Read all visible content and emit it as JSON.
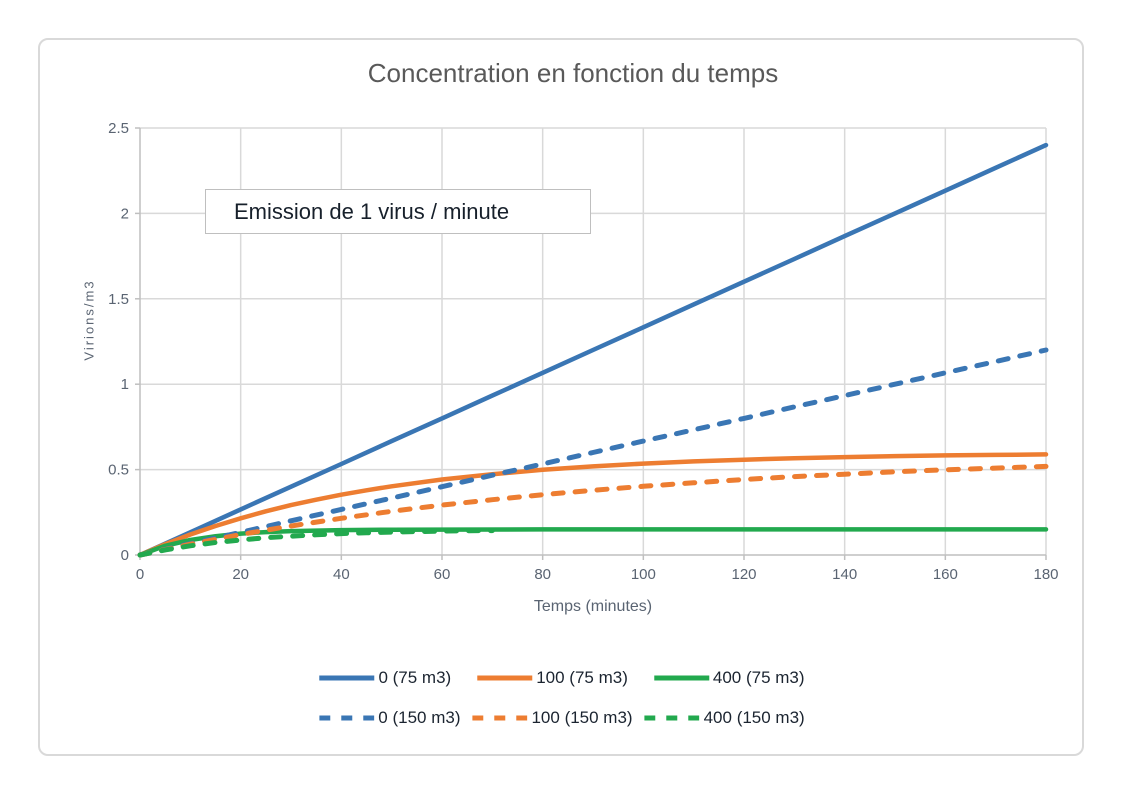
{
  "chart_data": {
    "type": "line",
    "title": "Concentration en fonction du temps",
    "annotation": "Emission de 1 virus / minute",
    "xlabel": "Temps (minutes)",
    "ylabel": "Virions/m3",
    "xlim": [
      0,
      180
    ],
    "ylim": [
      0,
      2.5
    ],
    "x_ticks": [
      0,
      20,
      40,
      60,
      80,
      100,
      120,
      140,
      160,
      180
    ],
    "y_ticks": [
      0,
      0.5,
      1,
      1.5,
      2,
      2.5
    ],
    "grid": true,
    "legend_position": "bottom",
    "palette": {
      "grid": "#d9d9d9",
      "axis": "#bfbfbf",
      "tick_text": "#5a6472",
      "title_text": "#595959",
      "legend_text": "#1b2430",
      "blue": "#3a76b4",
      "orange": "#ed7d31",
      "green": "#22a94e"
    },
    "series": [
      {
        "name": "0 (75 m3)",
        "color": "#3a76b4",
        "style": "solid",
        "x": [
          0,
          10,
          20,
          30,
          40,
          50,
          60,
          70,
          80,
          90,
          100,
          110,
          120,
          130,
          140,
          150,
          160,
          170,
          180
        ],
        "y": [
          0,
          0.133,
          0.267,
          0.4,
          0.533,
          0.667,
          0.8,
          0.933,
          1.067,
          1.2,
          1.333,
          1.467,
          1.6,
          1.733,
          1.867,
          2,
          2.133,
          2.267,
          2.4
        ]
      },
      {
        "name": "100 (75 m3)",
        "color": "#ed7d31",
        "style": "solid",
        "x": [
          0,
          5,
          10,
          15,
          20,
          25,
          30,
          35,
          40,
          45,
          50,
          60,
          70,
          80,
          90,
          100,
          110,
          120,
          130,
          140,
          150,
          160,
          170,
          180
        ],
        "y": [
          0,
          0.063,
          0.12,
          0.17,
          0.215,
          0.256,
          0.292,
          0.324,
          0.353,
          0.379,
          0.402,
          0.442,
          0.473,
          0.499,
          0.519,
          0.535,
          0.548,
          0.558,
          0.567,
          0.573,
          0.579,
          0.583,
          0.586,
          0.589
        ]
      },
      {
        "name": "400 (75 m3)",
        "color": "#22a94e",
        "style": "solid",
        "x": [
          0,
          5,
          10,
          15,
          20,
          25,
          30,
          35,
          40,
          50,
          60,
          80,
          100,
          120,
          140,
          160,
          180
        ],
        "y": [
          0,
          0.054,
          0.088,
          0.11,
          0.125,
          0.134,
          0.14,
          0.143,
          0.146,
          0.148,
          0.149,
          0.15,
          0.15,
          0.15,
          0.15,
          0.15,
          0.15
        ]
      },
      {
        "name": "0 (150 m3)",
        "color": "#3a76b4",
        "style": "dashed",
        "x": [
          0,
          10,
          20,
          30,
          40,
          50,
          60,
          70,
          80,
          90,
          100,
          110,
          120,
          130,
          140,
          150,
          160,
          170,
          180
        ],
        "y": [
          0,
          0.067,
          0.133,
          0.2,
          0.267,
          0.333,
          0.4,
          0.467,
          0.533,
          0.6,
          0.667,
          0.733,
          0.8,
          0.867,
          0.933,
          1,
          1.067,
          1.133,
          1.2
        ]
      },
      {
        "name": "100 (150 m3)",
        "color": "#ed7d31",
        "style": "dashed",
        "x": [
          0,
          10,
          20,
          30,
          40,
          50,
          60,
          70,
          80,
          90,
          100,
          110,
          120,
          130,
          140,
          150,
          160,
          170,
          180
        ],
        "y": [
          0,
          0.063,
          0.12,
          0.17,
          0.215,
          0.256,
          0.292,
          0.324,
          0.353,
          0.379,
          0.402,
          0.423,
          0.442,
          0.459,
          0.473,
          0.487,
          0.499,
          0.509,
          0.519
        ]
      },
      {
        "name": "400 (150 m3)",
        "color": "#22a94e",
        "style": "dashed",
        "x": [
          0,
          5,
          10,
          15,
          20,
          25,
          30,
          35,
          40,
          45,
          50,
          55,
          60,
          65,
          70
        ],
        "y": [
          0,
          0.03,
          0.054,
          0.073,
          0.088,
          0.101,
          0.11,
          0.118,
          0.125,
          0.13,
          0.134,
          0.137,
          0.14,
          0.142,
          0.143
        ]
      }
    ]
  }
}
